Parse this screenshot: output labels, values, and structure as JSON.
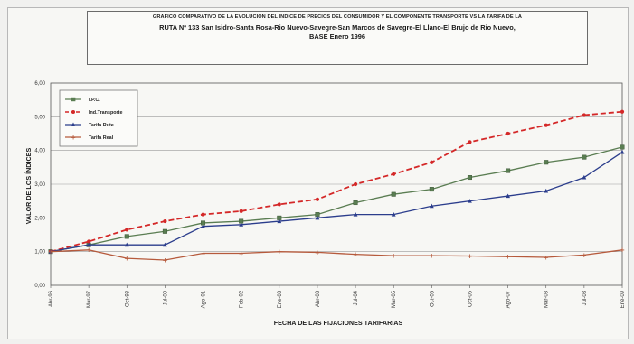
{
  "colors": {
    "ipc": "#5a7d52",
    "transporte": "#d42828",
    "tarifa_rute": "#2b3d8c",
    "tarifa_real": "#b65a3c"
  },
  "chart_data": {
    "type": "line",
    "title": "GRAFICO COMPARATIVO DE LA EVOLUCIÓN DEL INDICE DE PRECIOS DEL CONSUMIDOR Y EL COMPONENTE TRANSPORTE VS LA TARIFA DE LA",
    "subtitle": "RUTA Nº 133 San Isidro-Santa Rosa-Rio Nuevo-Savegre-San Marcos de Savegre-El Llano-El Brujo de Rio Nuevo, BASE Enero 1996",
    "xlabel": "FECHA DE LAS FIJACIONES TARIFARIAS",
    "ylabel": "VALOR DE LOS ÍNDICES",
    "ylim": [
      0,
      6
    ],
    "y_ticks": [
      "0,00",
      "1,00",
      "2,00",
      "3,00",
      "4,00",
      "5,00",
      "6,00"
    ],
    "grid": true,
    "legend_position": "top-left",
    "categories": [
      "Abr-96",
      "Mar-97",
      "Oct-98",
      "Jul-00",
      "Ago-01",
      "Feb-02",
      "Ene-03",
      "Abr-03",
      "Jul-04",
      "Mar-05",
      "Oct-05",
      "Oct-06",
      "Ago-07",
      "Mar-08",
      "Jul-08",
      "Ene-09"
    ],
    "series": [
      {
        "name": "I.P.C.",
        "values": [
          1.0,
          1.2,
          1.45,
          1.6,
          1.85,
          1.9,
          2.0,
          2.1,
          2.45,
          2.7,
          2.85,
          3.2,
          3.4,
          3.65,
          3.8,
          4.1
        ]
      },
      {
        "name": "Ind.Transporte",
        "values": [
          1.0,
          1.3,
          1.65,
          1.9,
          2.1,
          2.2,
          2.4,
          2.55,
          3.0,
          3.3,
          3.65,
          4.25,
          4.5,
          4.75,
          5.05,
          5.15
        ]
      },
      {
        "name": "Tarifa Rute",
        "values": [
          1.0,
          1.2,
          1.2,
          1.2,
          1.75,
          1.8,
          1.9,
          2.0,
          2.1,
          2.1,
          2.35,
          2.5,
          2.65,
          2.8,
          3.2,
          3.95
        ]
      },
      {
        "name": "Tarifa Real",
        "values": [
          1.0,
          1.05,
          0.8,
          0.75,
          0.95,
          0.95,
          1.0,
          0.98,
          0.92,
          0.88,
          0.88,
          0.87,
          0.85,
          0.83,
          0.9,
          1.05
        ]
      }
    ]
  }
}
